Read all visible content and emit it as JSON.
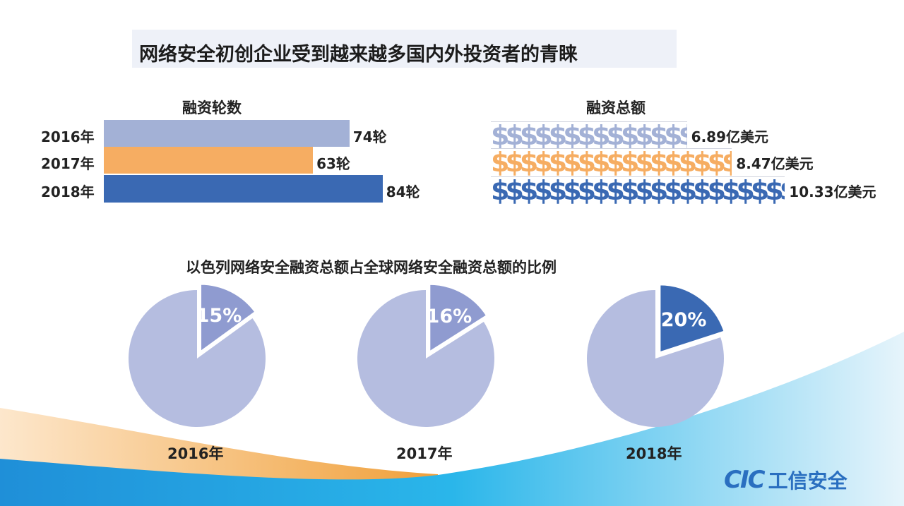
{
  "title": "网络安全初创企业受到越来越多国内外投资者的青睐",
  "colors": {
    "y2016": "#a3b1d6",
    "y2017": "#f6ad62",
    "y2018": "#3a69b3",
    "pie_base": "#b5bde0",
    "pie_2016": "#8f9bd0",
    "pie_2017": "#8f9bd0",
    "pie_2018": "#3a69b3"
  },
  "chart_data": [
    {
      "type": "bar",
      "title": "融资轮数",
      "orientation": "horizontal",
      "categories": [
        "2016年",
        "2017年",
        "2018年"
      ],
      "values": [
        74,
        63,
        84
      ],
      "data_labels": [
        "74轮",
        "63轮",
        "84轮"
      ]
    },
    {
      "type": "bar",
      "title": "融资总额",
      "orientation": "horizontal",
      "categories": [
        "2016年",
        "2017年",
        "2018年"
      ],
      "values": [
        6.89,
        8.47,
        10.33
      ],
      "unit": "亿美元",
      "symbol": "$",
      "data_labels": [
        "6.89亿美元",
        "8.47亿美元",
        "10.33亿美元"
      ]
    },
    {
      "type": "pie",
      "title": "以色列网络安全融资总额占全球网络安全融资总额的比例",
      "pies": [
        {
          "label": "2016年",
          "value": 15,
          "data_label": "15%"
        },
        {
          "label": "2017年",
          "value": 16,
          "data_label": "16%"
        },
        {
          "label": "2018年",
          "value": 20,
          "data_label": "20%"
        }
      ]
    }
  ],
  "logo": {
    "brand": "CIC",
    "name": "工信安全"
  }
}
